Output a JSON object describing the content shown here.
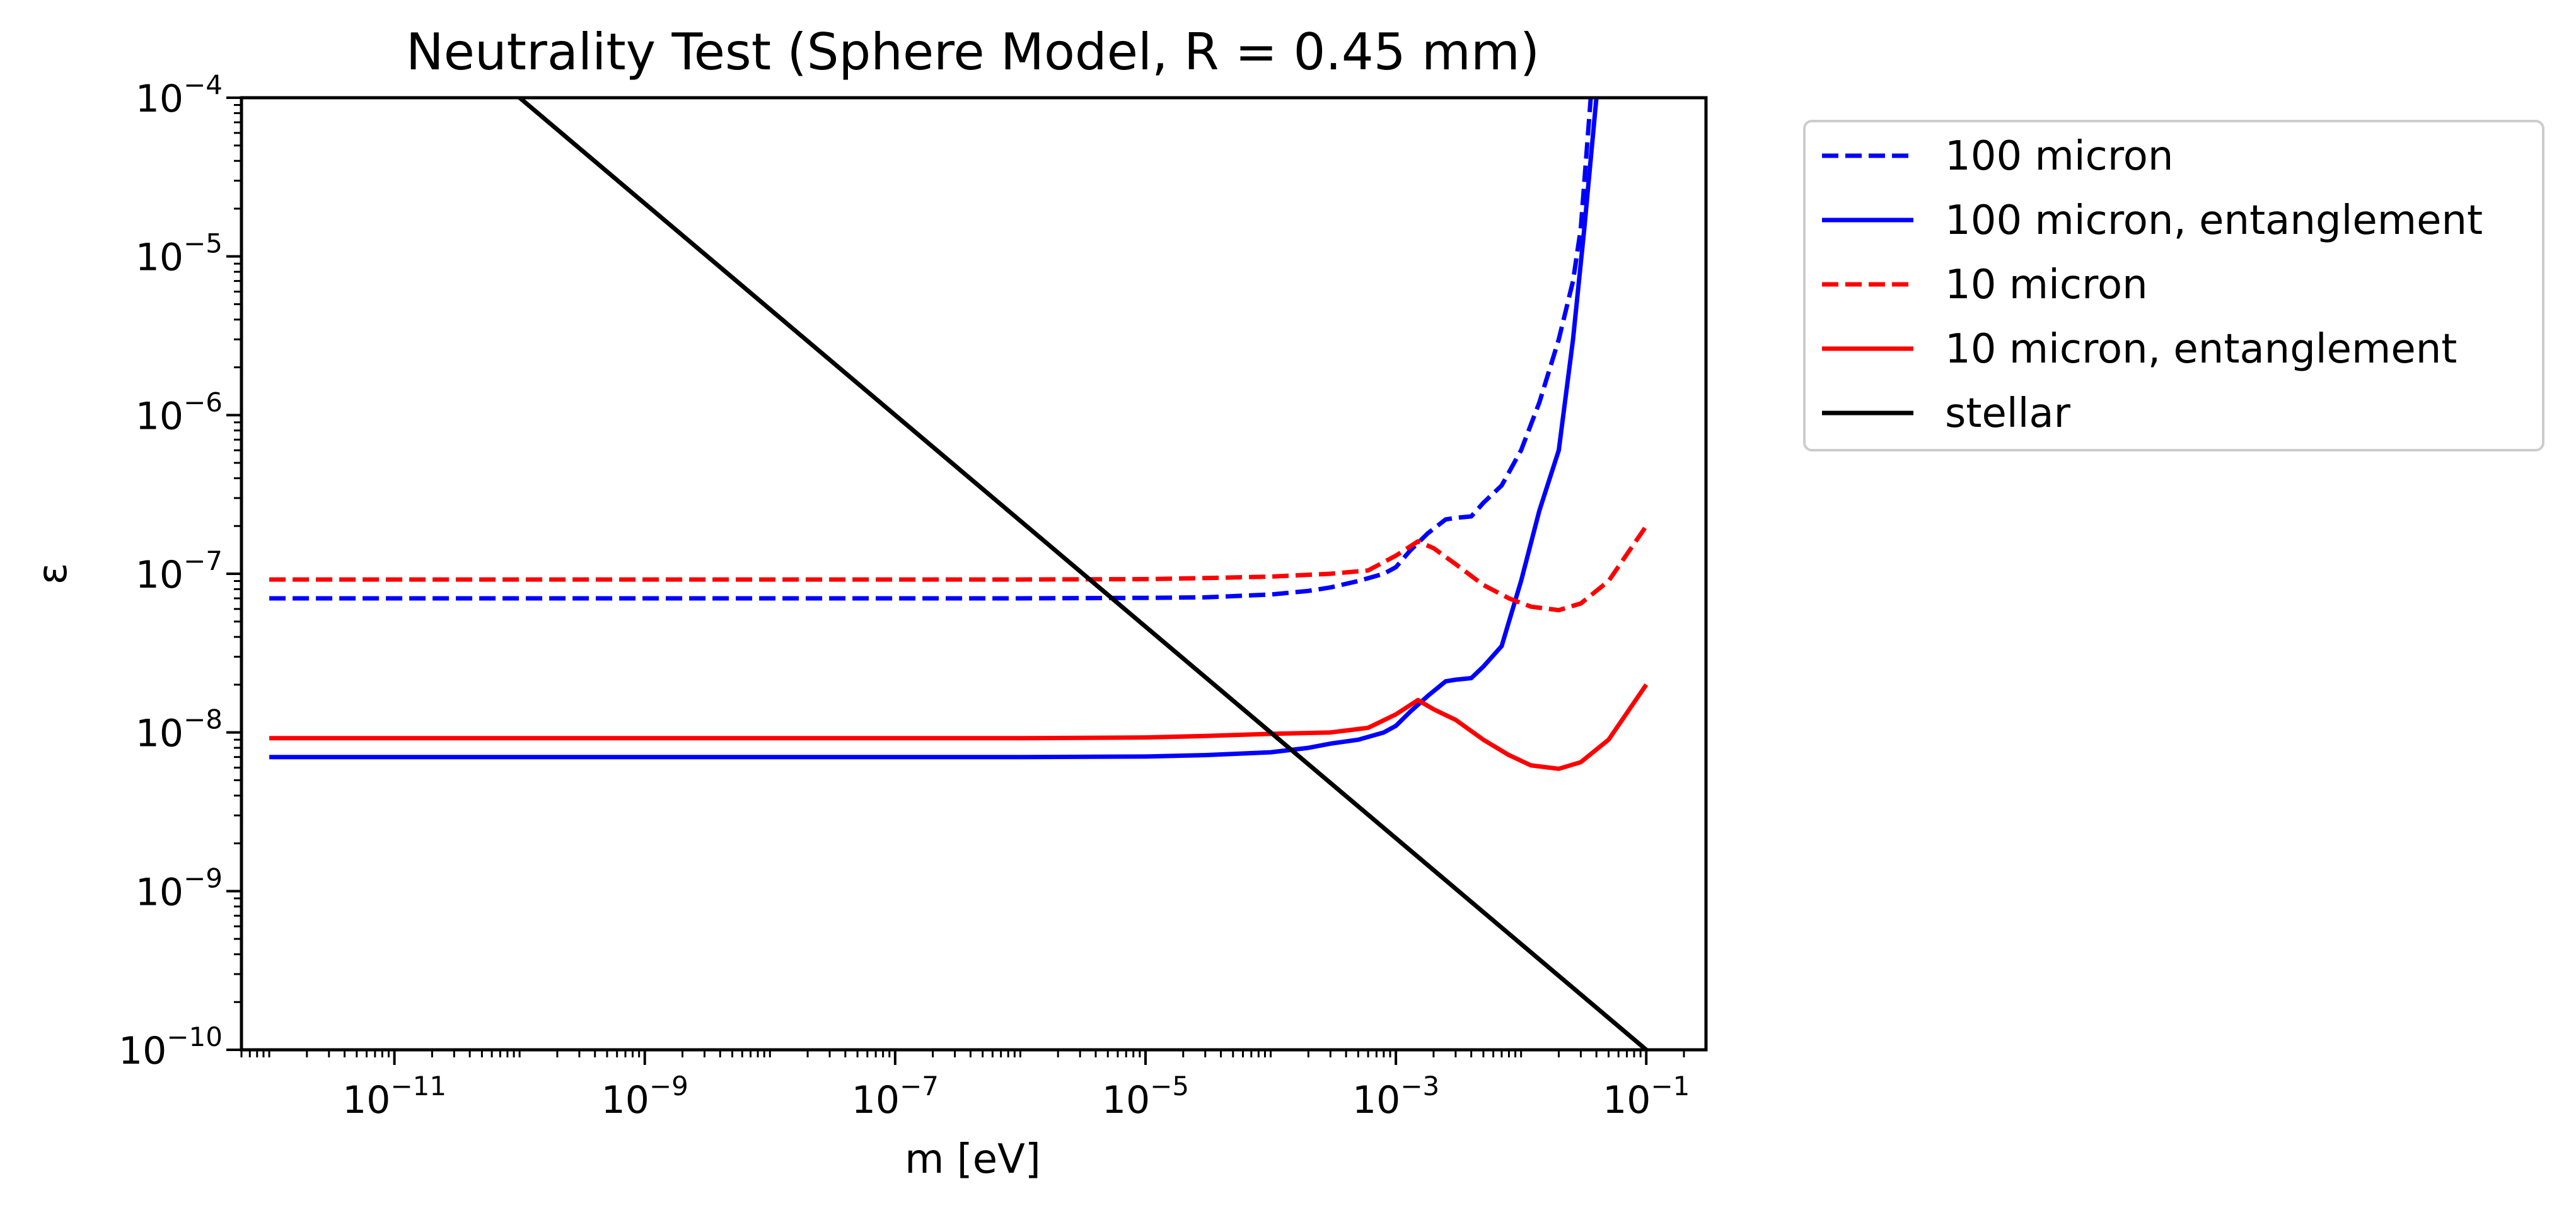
{
  "chart_data": {
    "type": "line",
    "title": "Neutrality Test (Sphere Model, R = 0.45 mm)",
    "xlabel": "m [eV]",
    "ylabel": "ε",
    "xscale": "log",
    "yscale": "log",
    "xlim": [
      6e-13,
      0.3
    ],
    "ylim": [
      1e-10,
      0.0001
    ],
    "x_ticks": [
      {
        "base": "10",
        "exp": "−11",
        "value": 1e-11
      },
      {
        "base": "10",
        "exp": "−9",
        "value": 1e-09
      },
      {
        "base": "10",
        "exp": "−7",
        "value": 1e-07
      },
      {
        "base": "10",
        "exp": "−5",
        "value": 1e-05
      },
      {
        "base": "10",
        "exp": "−3",
        "value": 0.001
      },
      {
        "base": "10",
        "exp": "−1",
        "value": 0.1
      }
    ],
    "y_ticks": [
      {
        "base": "10",
        "exp": "−10",
        "value": 1e-10
      },
      {
        "base": "10",
        "exp": "−9",
        "value": 1e-09
      },
      {
        "base": "10",
        "exp": "−8",
        "value": 1e-08
      },
      {
        "base": "10",
        "exp": "−7",
        "value": 1e-07
      },
      {
        "base": "10",
        "exp": "−6",
        "value": 1e-06
      },
      {
        "base": "10",
        "exp": "−5",
        "value": 1e-05
      },
      {
        "base": "10",
        "exp": "−4",
        "value": 0.0001
      }
    ],
    "grid": false,
    "legend_position": "outside-top-right",
    "series": [
      {
        "name": "100 micron",
        "color": "#0000ff",
        "style": "dashed",
        "x": [
          1e-12,
          1e-10,
          1e-08,
          1e-06,
          1e-05,
          3e-05,
          0.0001,
          0.0002,
          0.0003,
          0.0005,
          0.0008,
          0.001,
          0.0013,
          0.0018,
          0.0025,
          0.003,
          0.004,
          0.005,
          0.007,
          0.01,
          0.014,
          0.02,
          0.026,
          0.03,
          0.036
        ],
        "y": [
          7e-08,
          7e-08,
          7e-08,
          7e-08,
          7.05e-08,
          7.1e-08,
          7.4e-08,
          7.8e-08,
          8.2e-08,
          9e-08,
          1e-07,
          1.1e-07,
          1.4e-07,
          1.8e-07,
          2.2e-07,
          2.25e-07,
          2.3e-07,
          2.8e-07,
          3.6e-07,
          6e-07,
          1.2e-06,
          3e-06,
          7e-06,
          1.5e-05,
          0.0001
        ]
      },
      {
        "name": "100 micron, entanglement",
        "color": "#0000ff",
        "style": "solid",
        "x": [
          1e-12,
          1e-10,
          1e-08,
          1e-06,
          1e-05,
          3e-05,
          0.0001,
          0.0002,
          0.0003,
          0.0005,
          0.0008,
          0.001,
          0.0013,
          0.0018,
          0.0025,
          0.003,
          0.004,
          0.005,
          0.007,
          0.01,
          0.014,
          0.02,
          0.026,
          0.032,
          0.04
        ],
        "y": [
          7e-09,
          7e-09,
          7e-09,
          7e-09,
          7.05e-09,
          7.2e-09,
          7.5e-09,
          8e-09,
          8.5e-09,
          9e-09,
          1e-08,
          1.1e-08,
          1.35e-08,
          1.7e-08,
          2.1e-08,
          2.15e-08,
          2.2e-08,
          2.6e-08,
          3.5e-08,
          9e-08,
          2.5e-07,
          6e-07,
          3e-06,
          1.5e-05,
          0.0001
        ]
      },
      {
        "name": "10 micron",
        "color": "#ff0000",
        "style": "dashed",
        "x": [
          1e-12,
          1e-10,
          1e-08,
          1e-06,
          1e-05,
          3e-05,
          0.0001,
          0.0003,
          0.0006,
          0.001,
          0.0015,
          0.002,
          0.003,
          0.005,
          0.008,
          0.012,
          0.02,
          0.03,
          0.05,
          0.1
        ],
        "y": [
          9.2e-08,
          9.2e-08,
          9.2e-08,
          9.2e-08,
          9.25e-08,
          9.4e-08,
          9.6e-08,
          1e-07,
          1.05e-07,
          1.3e-07,
          1.6e-07,
          1.45e-07,
          1.15e-07,
          8.5e-08,
          7e-08,
          6.2e-08,
          5.9e-08,
          6.5e-08,
          9e-08,
          2e-07
        ]
      },
      {
        "name": "10 micron, entanglement",
        "color": "#ff0000",
        "style": "solid",
        "x": [
          1e-12,
          1e-10,
          1e-08,
          1e-06,
          1e-05,
          3e-05,
          0.0001,
          0.0003,
          0.0006,
          0.001,
          0.0015,
          0.002,
          0.003,
          0.005,
          0.008,
          0.012,
          0.02,
          0.03,
          0.05,
          0.1
        ],
        "y": [
          9.2e-09,
          9.2e-09,
          9.2e-09,
          9.2e-09,
          9.3e-09,
          9.5e-09,
          9.8e-09,
          1e-08,
          1.07e-08,
          1.3e-08,
          1.6e-08,
          1.4e-08,
          1.2e-08,
          9e-09,
          7.2e-09,
          6.2e-09,
          5.9e-09,
          6.5e-09,
          9e-09,
          2e-08
        ]
      },
      {
        "name": "stellar",
        "color": "#000000",
        "style": "solid",
        "x": [
          1e-10,
          0.1
        ],
        "y": [
          0.0001,
          1e-10
        ]
      }
    ]
  }
}
